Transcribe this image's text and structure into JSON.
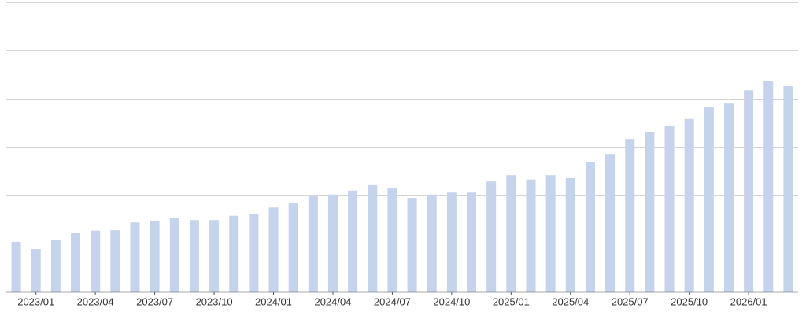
{
  "chart_data": {
    "type": "bar",
    "categories": [
      null,
      "2023/01",
      null,
      null,
      "2023/04",
      null,
      null,
      "2023/07",
      null,
      null,
      "2023/10",
      null,
      null,
      "2024/01",
      null,
      null,
      "2024/04",
      null,
      null,
      "2024/07",
      null,
      null,
      "2024/10",
      null,
      null,
      "2025/01",
      null,
      null,
      "2025/04",
      null,
      null,
      "2025/07",
      null,
      null,
      "2025/10",
      null,
      null,
      "2026/01",
      null,
      null
    ],
    "values": [
      1.03,
      0.88,
      1.06,
      1.21,
      1.26,
      1.27,
      1.43,
      1.47,
      1.53,
      1.48,
      1.48,
      1.57,
      1.6,
      1.74,
      1.84,
      1.99,
      2.01,
      2.09,
      2.22,
      2.15,
      1.94,
      2.01,
      2.05,
      2.05,
      2.28,
      2.41,
      2.32,
      2.41,
      2.36,
      2.69,
      2.85,
      3.16,
      3.31,
      3.44,
      3.59,
      3.83,
      3.91,
      4.17,
      4.37,
      4.26
    ],
    "color": "#c5d3ec",
    "ylim": [
      0,
      6
    ],
    "yticks": [
      0,
      1,
      2,
      3,
      4,
      5,
      6
    ],
    "grid": true
  }
}
